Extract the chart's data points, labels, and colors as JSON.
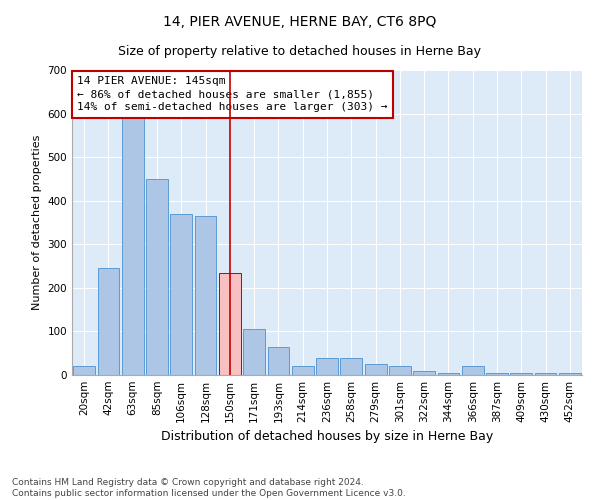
{
  "title": "14, PIER AVENUE, HERNE BAY, CT6 8PQ",
  "subtitle": "Size of property relative to detached houses in Herne Bay",
  "xlabel": "Distribution of detached houses by size in Herne Bay",
  "ylabel": "Number of detached properties",
  "categories": [
    "20sqm",
    "42sqm",
    "63sqm",
    "85sqm",
    "106sqm",
    "128sqm",
    "150sqm",
    "171sqm",
    "193sqm",
    "214sqm",
    "236sqm",
    "258sqm",
    "279sqm",
    "301sqm",
    "322sqm",
    "344sqm",
    "366sqm",
    "387sqm",
    "409sqm",
    "430sqm",
    "452sqm"
  ],
  "values": [
    20,
    245,
    595,
    450,
    370,
    365,
    235,
    105,
    65,
    20,
    40,
    40,
    25,
    20,
    10,
    5,
    20,
    5,
    5,
    5,
    5
  ],
  "bar_color": "#adc6e5",
  "bar_edge_color": "#5b9bd5",
  "highlight_index": 6,
  "highlight_color_fill": "#f8c0c0",
  "highlight_color_edge": "#c00000",
  "vline_x": 6,
  "vline_color": "#c00000",
  "annotation_text": "14 PIER AVENUE: 145sqm\n← 86% of detached houses are smaller (1,855)\n14% of semi-detached houses are larger (303) →",
  "annotation_box_color": "#ffffff",
  "annotation_box_edge": "#c00000",
  "ylim": [
    0,
    700
  ],
  "yticks": [
    0,
    100,
    200,
    300,
    400,
    500,
    600,
    700
  ],
  "footnote": "Contains HM Land Registry data © Crown copyright and database right 2024.\nContains public sector information licensed under the Open Government Licence v3.0.",
  "bg_color": "#ddeaf7",
  "fig_bg_color": "#ffffff",
  "title_fontsize": 10,
  "subtitle_fontsize": 9,
  "xlabel_fontsize": 9,
  "ylabel_fontsize": 8,
  "tick_fontsize": 7.5,
  "annotation_fontsize": 8,
  "footnote_fontsize": 6.5
}
